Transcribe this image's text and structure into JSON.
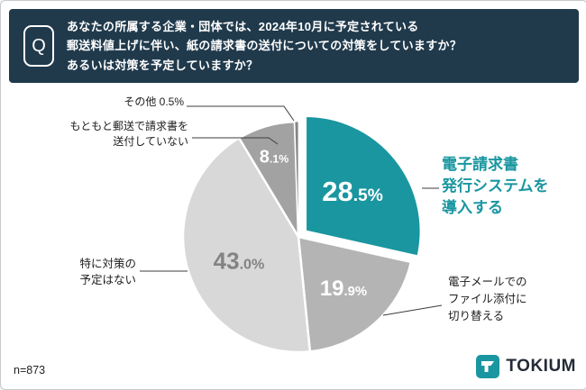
{
  "header": {
    "icon_label": "Q",
    "line1": "あなたの所属する企業・団体では、2024年10月に予定されている",
    "line2": "郵送料値上げに伴い、紙の請求書の送付についての対策をしていますか？",
    "line3": "あるいは対策を予定していますか？"
  },
  "colors": {
    "accent": "#1a96a0",
    "header_bg": "#203a4c",
    "gray_medium": "#b4b4b4",
    "gray_light": "#d8d8d8",
    "gray_dark": "#a2a2a2"
  },
  "chart_data": {
    "type": "pie",
    "title": "2024年10月の郵送料値上げに伴う紙の請求書送付についての対策",
    "start_angle_deg": 0,
    "direction": "clockwise",
    "sample_size": "n=873",
    "segments": [
      {
        "key": "einvoice",
        "label": "電子請求書発行システムを導入する",
        "value": 28.5,
        "color": "#1a96a0",
        "exploded": true,
        "pct_big": "28",
        "pct_small": ".5%"
      },
      {
        "key": "email",
        "label": "電子メールでのファイル添付に切り替える",
        "value": 19.9,
        "color": "#b4b4b4",
        "exploded": false,
        "pct_big": "19",
        "pct_small": ".9%"
      },
      {
        "key": "none",
        "label": "特に対策の予定はない",
        "value": 43.0,
        "color": "#d8d8d8",
        "exploded": false,
        "pct_big": "43",
        "pct_small": ".0%"
      },
      {
        "key": "postal",
        "label": "もともと郵送で請求書を送付していない",
        "value": 8.1,
        "color": "#a2a2a2",
        "exploded": false,
        "pct_big": "8",
        "pct_small": ".1%"
      },
      {
        "key": "other",
        "label": "その他",
        "value": 0.5,
        "color": "#858585",
        "exploded": false,
        "pct_big": "0",
        "pct_small": ".5%"
      }
    ]
  },
  "callouts": {
    "other": "その他 0.5%",
    "postal_line1": "もともと郵送で請求書を",
    "postal_line2": "送付していない",
    "none_line1": "特に対策の",
    "none_line2": "予定はない",
    "einvoice_line1": "電子請求書",
    "einvoice_line2": "発行システムを",
    "einvoice_line3": "導入する",
    "email_line1": "電子メールでの",
    "email_line2": "ファイル添付に",
    "email_line3": "切り替える"
  },
  "footer": {
    "sample": "n=873",
    "brand": "TOKIUM"
  }
}
